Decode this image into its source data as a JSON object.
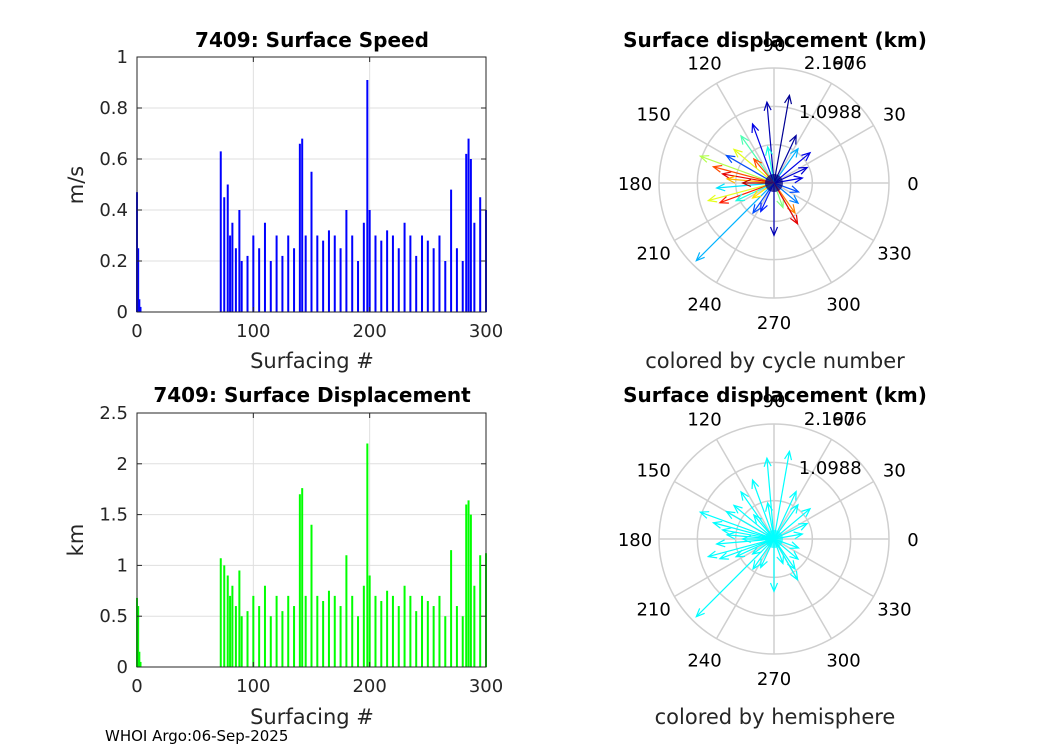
{
  "footer": "WHOI Argo:06-Sep-2025",
  "chart_data": [
    {
      "id": "speed",
      "type": "bar",
      "title": "7409: Surface Speed",
      "xlabel": "Surfacing #",
      "ylabel": "m/s",
      "xlim": [
        0,
        300
      ],
      "ylim": [
        0,
        1
      ],
      "xticks": [
        "0",
        "100",
        "200",
        "300"
      ],
      "yticks": [
        "0",
        "0.2",
        "0.4",
        "0.6",
        "0.8",
        "1"
      ],
      "grid": true,
      "color": "#0000ff",
      "x": [
        0,
        1,
        2,
        3,
        72,
        75,
        78,
        80,
        82,
        85,
        88,
        90,
        95,
        100,
        105,
        110,
        115,
        120,
        125,
        130,
        135,
        140,
        142,
        145,
        150,
        155,
        160,
        165,
        170,
        175,
        180,
        185,
        190,
        195,
        198,
        200,
        205,
        210,
        215,
        220,
        225,
        230,
        235,
        240,
        245,
        250,
        255,
        260,
        265,
        270,
        275,
        280,
        283,
        285,
        287,
        290,
        295,
        300
      ],
      "values": [
        0.47,
        0.25,
        0.05,
        0.02,
        0.63,
        0.45,
        0.5,
        0.3,
        0.35,
        0.25,
        0.4,
        0.2,
        0.22,
        0.3,
        0.25,
        0.35,
        0.2,
        0.3,
        0.22,
        0.3,
        0.25,
        0.66,
        0.68,
        0.3,
        0.55,
        0.3,
        0.28,
        0.32,
        0.3,
        0.25,
        0.4,
        0.3,
        0.2,
        0.35,
        0.91,
        0.4,
        0.3,
        0.28,
        0.32,
        0.3,
        0.25,
        0.35,
        0.3,
        0.22,
        0.3,
        0.28,
        0.25,
        0.3,
        0.2,
        0.48,
        0.25,
        0.2,
        0.62,
        0.68,
        0.6,
        0.35,
        0.45,
        0.4
      ]
    },
    {
      "id": "displacement",
      "type": "bar",
      "title": "7409: Surface Displacement",
      "xlabel": "Surfacing #",
      "ylabel": "km",
      "xlim": [
        0,
        300
      ],
      "ylim": [
        0,
        2.5
      ],
      "xticks": [
        "0",
        "100",
        "200",
        "300"
      ],
      "yticks": [
        "0",
        "0.5",
        "1",
        "1.5",
        "2",
        "2.5"
      ],
      "grid": true,
      "color": "#00ff00",
      "x": [
        0,
        1,
        2,
        3,
        72,
        75,
        78,
        80,
        82,
        85,
        88,
        90,
        95,
        100,
        105,
        110,
        115,
        120,
        125,
        130,
        135,
        140,
        142,
        145,
        150,
        155,
        160,
        165,
        170,
        175,
        180,
        185,
        190,
        195,
        198,
        200,
        205,
        210,
        215,
        220,
        225,
        230,
        235,
        240,
        245,
        250,
        255,
        260,
        265,
        270,
        275,
        280,
        283,
        285,
        287,
        290,
        295,
        300
      ],
      "values": [
        0.68,
        0.6,
        0.15,
        0.05,
        1.07,
        1.0,
        0.9,
        0.7,
        0.8,
        0.6,
        0.95,
        0.5,
        0.55,
        0.7,
        0.6,
        0.8,
        0.5,
        0.7,
        0.55,
        0.7,
        0.6,
        1.7,
        1.76,
        0.7,
        1.4,
        0.7,
        0.65,
        0.75,
        0.7,
        0.6,
        1.1,
        0.7,
        0.5,
        0.8,
        2.2,
        0.9,
        0.7,
        0.65,
        0.75,
        0.7,
        0.6,
        0.8,
        0.7,
        0.55,
        0.7,
        0.65,
        0.6,
        0.7,
        0.5,
        1.15,
        0.6,
        0.5,
        1.6,
        1.64,
        1.5,
        0.8,
        1.1,
        1.12
      ]
    },
    {
      "id": "polar-cycle",
      "type": "polar-quiver",
      "title": "Surface displacement (km)",
      "subtitle": "colored by cycle number",
      "rmax": 2.1976,
      "radial_ticks": [
        "1.0988",
        "2.1976"
      ],
      "angle_ticks": [
        "0",
        "30",
        "60",
        "90",
        "120",
        "150",
        "180",
        "210",
        "240",
        "270",
        "300",
        "330"
      ],
      "color_mode": "cycle",
      "vectors": [
        {
          "angle": 80,
          "r": 1.7,
          "c": 0.02
        },
        {
          "angle": 95,
          "r": 1.55,
          "c": 0.05
        },
        {
          "angle": 110,
          "r": 1.2,
          "c": 0.1
        },
        {
          "angle": 125,
          "r": 1.1,
          "c": 0.45
        },
        {
          "angle": 140,
          "r": 1.0,
          "c": 0.6
        },
        {
          "angle": 150,
          "r": 1.05,
          "c": 0.2
        },
        {
          "angle": 160,
          "r": 1.5,
          "c": 0.55
        },
        {
          "angle": 165,
          "r": 1.2,
          "c": 0.8
        },
        {
          "angle": 170,
          "r": 1.0,
          "c": 0.9
        },
        {
          "angle": 175,
          "r": 0.9,
          "c": 0.7
        },
        {
          "angle": 185,
          "r": 1.1,
          "c": 0.35
        },
        {
          "angle": 195,
          "r": 1.3,
          "c": 0.6
        },
        {
          "angle": 200,
          "r": 1.1,
          "c": 0.85
        },
        {
          "angle": 205,
          "r": 0.8,
          "c": 0.4
        },
        {
          "angle": 225,
          "r": 2.1,
          "c": 0.3
        },
        {
          "angle": 245,
          "r": 0.6,
          "c": 0.15
        },
        {
          "angle": 270,
          "r": 1.0,
          "c": 0.05
        },
        {
          "angle": 290,
          "r": 0.5,
          "c": 0.5
        },
        {
          "angle": 305,
          "r": 0.7,
          "c": 0.75
        },
        {
          "angle": 320,
          "r": 0.6,
          "c": 0.25
        },
        {
          "angle": 340,
          "r": 0.5,
          "c": 0.2
        },
        {
          "angle": 10,
          "r": 0.55,
          "c": 0.1
        },
        {
          "angle": 25,
          "r": 0.7,
          "c": 0.08
        },
        {
          "angle": 40,
          "r": 0.9,
          "c": 0.1
        },
        {
          "angle": 55,
          "r": 0.8,
          "c": 0.3
        },
        {
          "angle": 65,
          "r": 1.0,
          "c": 0.03
        },
        {
          "angle": 100,
          "r": 0.7,
          "c": 0.4
        },
        {
          "angle": 130,
          "r": 0.6,
          "c": 0.8
        },
        {
          "angle": 180,
          "r": 0.6,
          "c": 0.95
        },
        {
          "angle": 215,
          "r": 0.5,
          "c": 0.65
        },
        {
          "angle": 235,
          "r": 0.7,
          "c": 0.2
        },
        {
          "angle": 300,
          "r": 0.9,
          "c": 0.9
        }
      ]
    },
    {
      "id": "polar-hemisphere",
      "type": "polar-quiver",
      "title": "Surface displacement (km)",
      "subtitle": "colored by hemisphere",
      "rmax": 2.1976,
      "radial_ticks": [
        "1.0988",
        "2.1976"
      ],
      "angle_ticks": [
        "0",
        "30",
        "60",
        "90",
        "120",
        "150",
        "180",
        "210",
        "240",
        "270",
        "300",
        "330"
      ],
      "color_mode": "single",
      "color": "#00ffff",
      "vectors": [
        {
          "angle": 80,
          "r": 1.7
        },
        {
          "angle": 95,
          "r": 1.55
        },
        {
          "angle": 110,
          "r": 1.2
        },
        {
          "angle": 125,
          "r": 1.1
        },
        {
          "angle": 140,
          "r": 1.0
        },
        {
          "angle": 150,
          "r": 1.05
        },
        {
          "angle": 160,
          "r": 1.5
        },
        {
          "angle": 165,
          "r": 1.2
        },
        {
          "angle": 170,
          "r": 1.0
        },
        {
          "angle": 175,
          "r": 0.9
        },
        {
          "angle": 185,
          "r": 1.1
        },
        {
          "angle": 195,
          "r": 1.3
        },
        {
          "angle": 200,
          "r": 1.1
        },
        {
          "angle": 205,
          "r": 0.8
        },
        {
          "angle": 225,
          "r": 2.1
        },
        {
          "angle": 245,
          "r": 0.6
        },
        {
          "angle": 270,
          "r": 1.0
        },
        {
          "angle": 290,
          "r": 0.5
        },
        {
          "angle": 305,
          "r": 0.7
        },
        {
          "angle": 320,
          "r": 0.6
        },
        {
          "angle": 340,
          "r": 0.5
        },
        {
          "angle": 10,
          "r": 0.55
        },
        {
          "angle": 25,
          "r": 0.7
        },
        {
          "angle": 40,
          "r": 0.9
        },
        {
          "angle": 55,
          "r": 0.8
        },
        {
          "angle": 65,
          "r": 1.0
        },
        {
          "angle": 100,
          "r": 0.7
        },
        {
          "angle": 130,
          "r": 0.6
        },
        {
          "angle": 180,
          "r": 0.6
        },
        {
          "angle": 215,
          "r": 0.5
        },
        {
          "angle": 235,
          "r": 0.7
        },
        {
          "angle": 300,
          "r": 0.9
        }
      ]
    }
  ]
}
